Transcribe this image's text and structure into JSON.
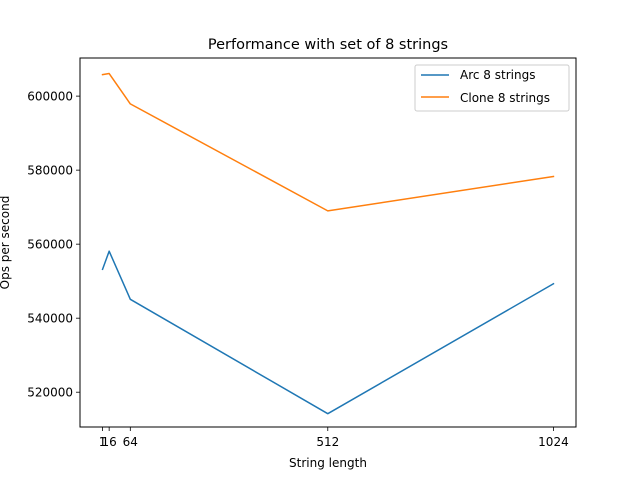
{
  "chart_data": {
    "type": "line",
    "title": "Performance with set of 8 strings",
    "xlabel": "String length",
    "ylabel": "Ops per second",
    "x": [
      1,
      16,
      64,
      512,
      1024
    ],
    "x_ticks": [
      1,
      16,
      64,
      512,
      1024
    ],
    "x_tick_labels": [
      "1",
      "16",
      "64",
      "512",
      "1024"
    ],
    "xlim": [
      -50.15,
      1075.15
    ],
    "y_ticks": [
      520000,
      540000,
      560000,
      580000,
      600000
    ],
    "y_tick_labels": [
      "520000",
      "540000",
      "560000",
      "580000",
      "600000"
    ],
    "ylim": [
      510600,
      610300
    ],
    "grid": false,
    "legend_position": "upper right",
    "series": [
      {
        "name": "Arc 8 strings",
        "color": "#1f77b4",
        "values": [
          553200,
          558100,
          545100,
          514200,
          549300
        ]
      },
      {
        "name": "Clone 8 strings",
        "color": "#ff7f0e",
        "values": [
          605800,
          606100,
          597900,
          569000,
          578300
        ]
      }
    ]
  }
}
